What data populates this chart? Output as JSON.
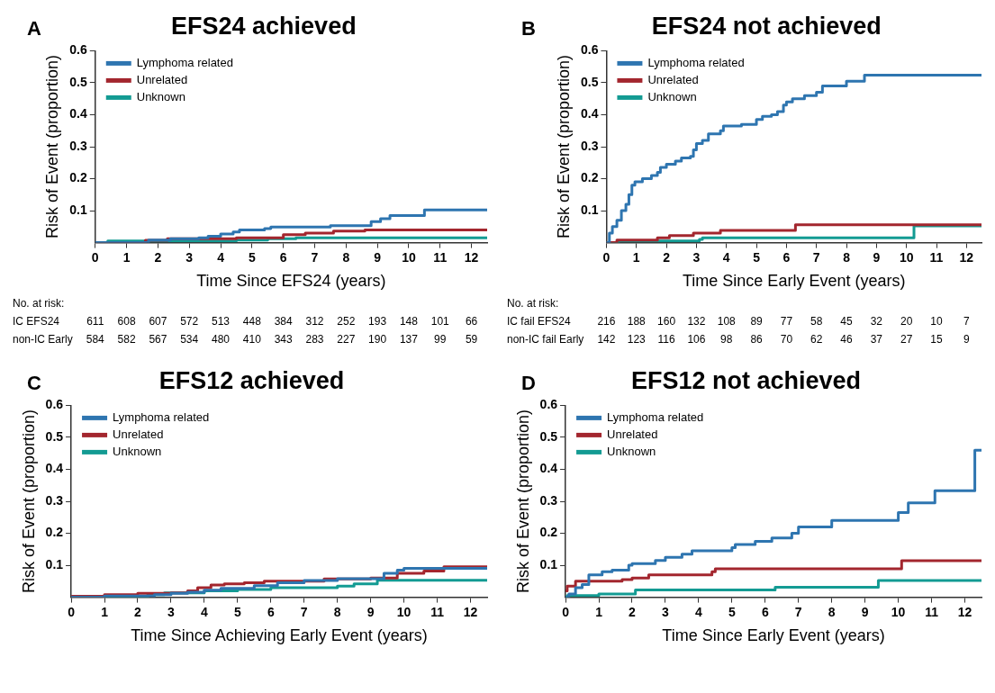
{
  "chart_data": [
    {
      "type": "step",
      "title": "EFS24 achieved",
      "xlabel": "Time Since EFS24 (years)",
      "ylabel": "Risk of Event (proportion)",
      "xlim": [
        0,
        12.5
      ],
      "xticks": [
        0,
        1,
        2,
        3,
        4,
        5,
        6,
        7,
        8,
        9,
        10,
        11,
        12
      ],
      "ylim": [
        0,
        0.6
      ],
      "yticks": [
        0.1,
        0.2,
        0.3,
        0.4,
        0.5,
        0.6
      ],
      "legend": "top left",
      "annotations": [
        "A",
        "No. at risk:",
        "IC EFS24 611 608 607 572 513 448 384 312 252 193 148 101 66",
        "non-IC Early 584 582 567 534 480 410 343 283 227 190 137 99 59"
      ],
      "series": [
        {
          "name": "Lymphoma related",
          "color": "#2e75b0",
          "x": [
            0,
            1.7,
            2.4,
            3.3,
            3.6,
            4.0,
            4.4,
            4.6,
            5.4,
            5.6,
            7.5,
            8.8,
            9.1,
            9.4,
            10.5,
            12.5
          ],
          "values": [
            0,
            0.008,
            0.012,
            0.015,
            0.02,
            0.027,
            0.033,
            0.04,
            0.044,
            0.049,
            0.053,
            0.066,
            0.075,
            0.085,
            0.102,
            0.102
          ]
        },
        {
          "name": "Unrelated",
          "color": "#a3262e",
          "x": [
            0,
            1.6,
            2.3,
            4.5,
            6.0,
            6.7,
            7.6,
            8.6,
            12.5
          ],
          "values": [
            0,
            0.007,
            0.012,
            0.015,
            0.025,
            0.03,
            0.036,
            0.04,
            0.04
          ]
        },
        {
          "name": "Unknown",
          "color": "#139b93",
          "x": [
            0,
            0.4,
            4.5,
            5.5,
            6.4,
            12.5
          ],
          "values": [
            0,
            0.005,
            0.008,
            0.012,
            0.015,
            0.015
          ]
        }
      ]
    },
    {
      "type": "step",
      "title": "EFS24 not achieved",
      "xlabel": "Time Since Early Event (years)",
      "ylabel": "Risk of Event (proportion)",
      "xlim": [
        0,
        12.5
      ],
      "xticks": [
        0,
        1,
        2,
        3,
        4,
        5,
        6,
        7,
        8,
        9,
        10,
        11,
        12
      ],
      "ylim": [
        0,
        0.6
      ],
      "yticks": [
        0.1,
        0.2,
        0.3,
        0.4,
        0.5,
        0.6
      ],
      "legend": "top left",
      "annotations": [
        "B",
        "No. at risk:",
        "IC fail EFS24 216 188 160 132 108 89 77 58 45 32 20 10 7",
        "non-IC fail Early 142 123 116 106 98 86 70 62 46 37 27 15 9"
      ],
      "series": [
        {
          "name": "Lymphoma related",
          "color": "#2e75b0",
          "x": [
            0,
            0.1,
            0.2,
            0.35,
            0.5,
            0.65,
            0.75,
            0.85,
            0.95,
            1.2,
            1.5,
            1.7,
            1.8,
            2.0,
            2.3,
            2.5,
            2.8,
            2.9,
            3.0,
            3.2,
            3.4,
            3.8,
            3.9,
            4.5,
            5.0,
            5.2,
            5.5,
            5.7,
            5.9,
            6.0,
            6.2,
            6.6,
            7.0,
            7.2,
            8.0,
            8.6,
            12.5
          ],
          "values": [
            0,
            0.03,
            0.05,
            0.07,
            0.1,
            0.12,
            0.15,
            0.18,
            0.19,
            0.2,
            0.21,
            0.22,
            0.235,
            0.245,
            0.255,
            0.265,
            0.27,
            0.29,
            0.31,
            0.32,
            0.34,
            0.35,
            0.365,
            0.37,
            0.385,
            0.395,
            0.4,
            0.41,
            0.43,
            0.44,
            0.45,
            0.46,
            0.47,
            0.49,
            0.505,
            0.524,
            0.524
          ]
        },
        {
          "name": "Unrelated",
          "color": "#a3262e",
          "x": [
            0,
            0.35,
            1.7,
            2.1,
            2.9,
            3.8,
            6.3,
            12.5
          ],
          "values": [
            0,
            0.008,
            0.015,
            0.022,
            0.03,
            0.038,
            0.056,
            0.056
          ]
        },
        {
          "name": "Unknown",
          "color": "#139b93",
          "x": [
            0,
            0.4,
            3.1,
            3.2,
            10.25,
            12.5
          ],
          "values": [
            0,
            0.005,
            0.01,
            0.015,
            0.052,
            0.052
          ]
        }
      ]
    },
    {
      "type": "step",
      "title": "EFS12 achieved",
      "xlabel": "Time Since Achieving Early Event (years)",
      "ylabel": "Risk of Event (proportion)",
      "xlim": [
        0,
        12.5
      ],
      "xticks": [
        0,
        1,
        2,
        3,
        4,
        5,
        6,
        7,
        8,
        9,
        10,
        11,
        12
      ],
      "ylim": [
        0,
        0.6
      ],
      "yticks": [
        0.1,
        0.2,
        0.3,
        0.4,
        0.5,
        0.6
      ],
      "legend": "top left",
      "annotations": [
        "C"
      ],
      "series": [
        {
          "name": "Lymphoma related",
          "color": "#2e75b0",
          "x": [
            0,
            1,
            2.5,
            3,
            3.5,
            4,
            4.5,
            5.5,
            6.2,
            7,
            8,
            9.4,
            9.8,
            10,
            12.5
          ],
          "values": [
            0,
            0.004,
            0.008,
            0.012,
            0.016,
            0.022,
            0.028,
            0.036,
            0.045,
            0.052,
            0.058,
            0.075,
            0.085,
            0.09,
            0.09
          ]
        },
        {
          "name": "Unrelated",
          "color": "#a3262e",
          "x": [
            0,
            1,
            2,
            3,
            3.5,
            3.8,
            4.2,
            4.6,
            5.2,
            5.8,
            7.6,
            9,
            9.8,
            10.6,
            11.2,
            12.5
          ],
          "values": [
            0.003,
            0.008,
            0.012,
            0.014,
            0.02,
            0.03,
            0.038,
            0.042,
            0.045,
            0.05,
            0.057,
            0.06,
            0.075,
            0.082,
            0.095,
            0.095
          ]
        },
        {
          "name": "Unknown",
          "color": "#139b93",
          "x": [
            0,
            2.3,
            2.8,
            4,
            5,
            6,
            8,
            8.5,
            9.2,
            12.5
          ],
          "values": [
            0,
            0.008,
            0.014,
            0.02,
            0.024,
            0.03,
            0.035,
            0.042,
            0.053,
            0.053
          ]
        }
      ]
    },
    {
      "type": "step",
      "title": "EFS12 not achieved",
      "xlabel": "Time Since Early Event (years)",
      "ylabel": "Risk of Event (proportion)",
      "xlim": [
        0,
        12.5
      ],
      "xticks": [
        0,
        1,
        2,
        3,
        4,
        5,
        6,
        7,
        8,
        9,
        10,
        11,
        12
      ],
      "ylim": [
        0,
        0.6
      ],
      "yticks": [
        0.1,
        0.2,
        0.3,
        0.4,
        0.5,
        0.6
      ],
      "legend": "top left",
      "annotations": [
        "D"
      ],
      "series": [
        {
          "name": "Lymphoma related",
          "color": "#2e75b0",
          "x": [
            0,
            0.1,
            0.3,
            0.5,
            0.7,
            1.1,
            1.4,
            1.9,
            2.0,
            2.7,
            3.0,
            3.5,
            3.8,
            5.0,
            5.1,
            5.7,
            6.2,
            6.8,
            7.0,
            8.0,
            10.0,
            10.3,
            11.1,
            12.3,
            12.5
          ],
          "values": [
            0,
            0.01,
            0.03,
            0.04,
            0.07,
            0.08,
            0.085,
            0.1,
            0.105,
            0.115,
            0.125,
            0.135,
            0.145,
            0.155,
            0.165,
            0.175,
            0.185,
            0.2,
            0.22,
            0.24,
            0.265,
            0.295,
            0.333,
            0.46,
            0.46
          ]
        },
        {
          "name": "Unrelated",
          "color": "#a3262e",
          "x": [
            0,
            0.05,
            0.3,
            1.7,
            2.0,
            2.5,
            4.4,
            4.5,
            10.1,
            12.5
          ],
          "values": [
            0.02,
            0.035,
            0.05,
            0.055,
            0.06,
            0.07,
            0.08,
            0.089,
            0.114,
            0.114
          ]
        },
        {
          "name": "Unknown",
          "color": "#139b93",
          "x": [
            0,
            0.05,
            1.0,
            2.1,
            6.3,
            9.4,
            12.5
          ],
          "values": [
            0,
            0.005,
            0.01,
            0.023,
            0.031,
            0.052,
            0.052
          ]
        }
      ]
    }
  ]
}
